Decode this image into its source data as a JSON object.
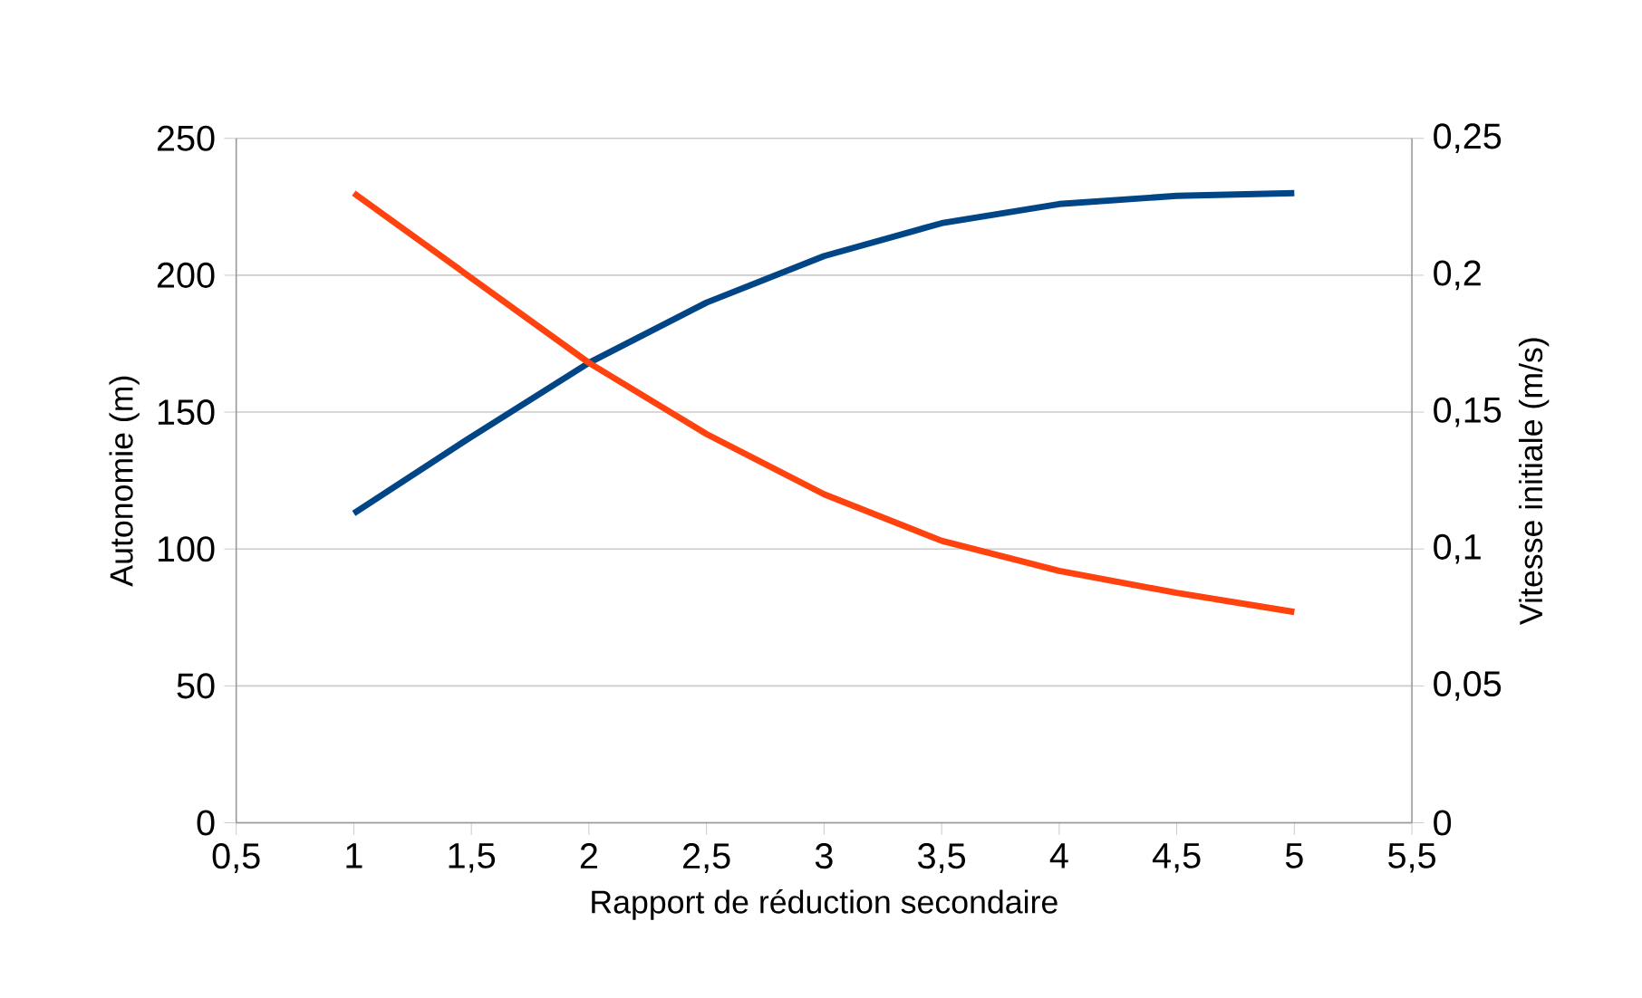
{
  "chart_data": {
    "type": "line",
    "xlabel": "Rapport de réduction secondaire",
    "ylabel": "Autonomie (m)",
    "y2label": "Vitesse initiale (m/s)",
    "x": [
      1,
      1.5,
      2,
      2.5,
      3,
      3.5,
      4,
      4.5,
      5
    ],
    "series": [
      {
        "color": "#004586",
        "values": [
          113,
          141,
          168,
          190,
          207,
          219,
          226,
          229,
          230
        ]
      },
      {
        "color": "#ff420e",
        "axis": "y2",
        "values": [
          0.23,
          0.199,
          0.168,
          0.142,
          0.12,
          0.103,
          0.092,
          0.084,
          0.077
        ]
      }
    ],
    "xlim": [
      0.5,
      5.5
    ],
    "xticks": [
      {
        "value": 0.5,
        "label": "0,5"
      },
      1,
      {
        "value": 1.5,
        "label": "1,5"
      },
      2,
      {
        "value": 2.5,
        "label": "2,5"
      },
      3,
      {
        "value": 3.5,
        "label": "3,5"
      },
      4,
      {
        "value": 4.5,
        "label": "4,5"
      },
      5,
      {
        "value": 5.5,
        "label": "5,5"
      }
    ],
    "ylim": [
      0,
      250
    ],
    "yticks": [
      0,
      50,
      100,
      150,
      200,
      250
    ],
    "y2lim": [
      0,
      0.25
    ],
    "y2ticks": [
      0,
      {
        "value": 0.05,
        "label": "0,05"
      },
      {
        "value": 0.1,
        "label": "0,1"
      },
      {
        "value": 0.15,
        "label": "0,15"
      },
      {
        "value": 0.2,
        "label": "0,2"
      },
      {
        "value": 0.25,
        "label": "0,25"
      }
    ],
    "grid": "y"
  }
}
